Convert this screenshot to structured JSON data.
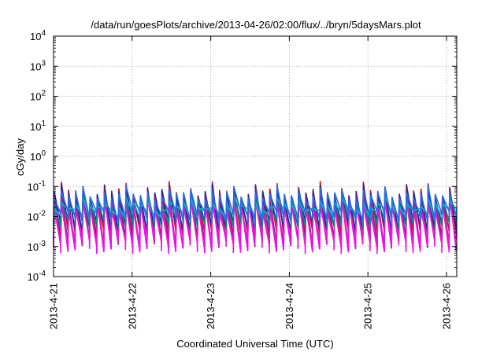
{
  "chart_data": {
    "type": "line",
    "title": "/data/run/goesPlots/archive/2013-04-26/02:00/flux/../bryn/5daysMars.plot",
    "xlabel": "Coordinated Universal Time (UTC)",
    "ylabel": "cGy/day",
    "yscale": "log",
    "ylim_exp": [
      -4,
      4
    ],
    "ytick_exponents": [
      "-4",
      "-3",
      "-2",
      "-1",
      "0",
      "1",
      "2",
      "3",
      "4"
    ],
    "ytick_base": "10",
    "xtick_labels": [
      "2013-4-21",
      "2013-4-22",
      "2013-4-23",
      "2013-4-24",
      "2013-4-25",
      "2013-4-26"
    ],
    "xlim_days": [
      0,
      5.13
    ],
    "xtick_days": [
      0,
      1,
      2,
      3,
      4,
      5
    ],
    "grid": true,
    "cycle_days": 0.0915,
    "series": [
      {
        "color": "#dd1111",
        "peak_log": [
          -1.2,
          -0.95,
          -1.25
        ],
        "trough_log": -2.7
      },
      {
        "color": "#1a2a9a",
        "peak_log": [
          -1.25,
          -1.05,
          -1.3
        ],
        "trough_log": -2.4
      },
      {
        "color": "#8a1a8a",
        "peak_log": [
          -1.4,
          -1.2,
          -1.45
        ],
        "trough_log": -2.95
      },
      {
        "color": "#ff00ff",
        "peak_log": [
          -1.6,
          -1.4,
          -1.65
        ],
        "trough_log": -3.05
      },
      {
        "color": "#e020c8",
        "peak_log": [
          -1.75,
          -1.55,
          -1.8
        ],
        "trough_log": -2.85
      },
      {
        "color": "#008b8b",
        "peak_log": [
          -1.55,
          -1.35,
          -1.6
        ],
        "trough_log": -2.2
      },
      {
        "color": "#00bcd4",
        "peak_log": [
          -1.65,
          -1.45,
          -1.7
        ],
        "trough_log": -1.95
      },
      {
        "color": "#2a6ae8",
        "peak_log": [
          -1.3,
          -1.1,
          -1.35
        ],
        "trough_log": -2.05
      }
    ]
  }
}
